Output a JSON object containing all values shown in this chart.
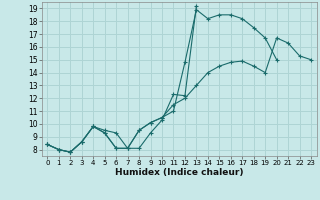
{
  "xlabel": "Humidex (Indice chaleur)",
  "bg_color": "#c8e8e8",
  "grid_color": "#aed4d4",
  "line_color": "#1a6b6b",
  "xlim": [
    -0.5,
    23.5
  ],
  "ylim": [
    7.5,
    19.5
  ],
  "xticks": [
    0,
    1,
    2,
    3,
    4,
    5,
    6,
    7,
    8,
    9,
    10,
    11,
    12,
    13,
    14,
    15,
    16,
    17,
    18,
    19,
    20,
    21,
    22,
    23
  ],
  "yticks": [
    8,
    9,
    10,
    11,
    12,
    13,
    14,
    15,
    16,
    17,
    18,
    19
  ],
  "line1_x": [
    0,
    1,
    2,
    3,
    4,
    5,
    6,
    7,
    8,
    9,
    10,
    11,
    12,
    13,
    14,
    15,
    16,
    17,
    18,
    19,
    20
  ],
  "line1_y": [
    8.4,
    8.0,
    7.8,
    8.6,
    9.8,
    9.3,
    8.1,
    8.1,
    9.5,
    10.1,
    10.5,
    11.0,
    14.8,
    18.9,
    18.2,
    18.5,
    18.5,
    18.2,
    17.5,
    16.7,
    15.0
  ],
  "line2_x": [
    0,
    1,
    2,
    3,
    4,
    5,
    6,
    7,
    8,
    9,
    10,
    11,
    12,
    13
  ],
  "line2_y": [
    8.4,
    8.0,
    7.8,
    8.6,
    9.8,
    9.5,
    9.3,
    8.1,
    8.1,
    9.3,
    10.3,
    12.3,
    12.2,
    19.2
  ],
  "line3_x": [
    0,
    1,
    2,
    3,
    4,
    5,
    6,
    7,
    8,
    9,
    10,
    11,
    12,
    13,
    14,
    15,
    16,
    17,
    18,
    19,
    20,
    21,
    22,
    23
  ],
  "line3_y": [
    8.4,
    8.0,
    7.8,
    8.6,
    9.8,
    9.3,
    8.1,
    8.1,
    9.5,
    10.1,
    10.5,
    11.5,
    12.0,
    13.0,
    14.0,
    14.5,
    14.8,
    14.9,
    14.5,
    14.0,
    16.7,
    16.3,
    15.3,
    15.0
  ]
}
